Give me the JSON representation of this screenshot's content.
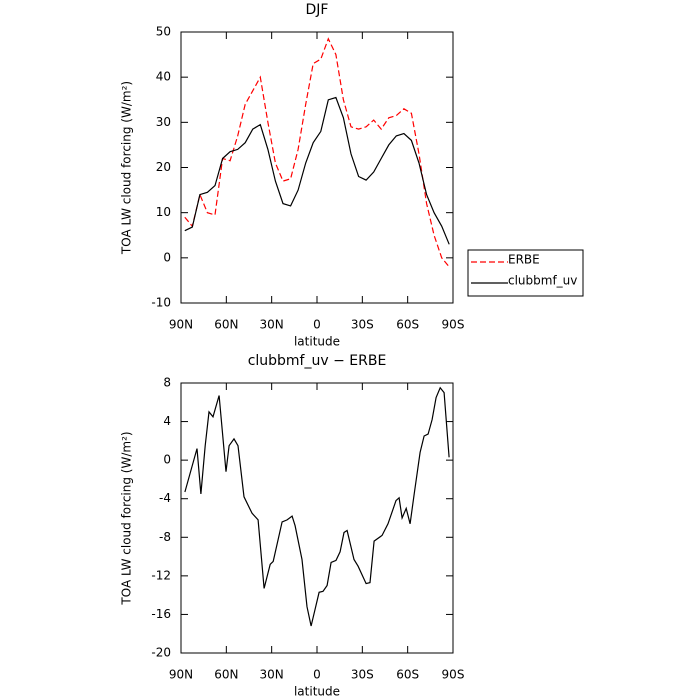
{
  "chart_data": [
    {
      "type": "line",
      "title": "DJF",
      "xlabel": "latitude",
      "ylabel": "TOA LW cloud forcing (W/m²)",
      "xlim": [
        90,
        -90
      ],
      "xticks": [
        {
          "value": 90,
          "label": "90N"
        },
        {
          "value": 60,
          "label": "60N"
        },
        {
          "value": 30,
          "label": "30N"
        },
        0,
        {
          "value": -30,
          "label": "30S"
        },
        {
          "value": -60,
          "label": "60S"
        },
        {
          "value": -90,
          "label": "90S"
        }
      ],
      "ylim": [
        -10,
        50
      ],
      "yticks": [
        -10,
        0,
        10,
        20,
        30,
        40,
        50
      ],
      "x": [
        87.5,
        82.5,
        77.5,
        72.5,
        67.5,
        62.5,
        57.5,
        52.5,
        47.5,
        42.5,
        37.5,
        32.5,
        27.5,
        22.5,
        17.5,
        12.5,
        7.5,
        2.5,
        -2.5,
        -7.5,
        -12.5,
        -17.5,
        -22.5,
        -27.5,
        -32.5,
        -37.5,
        -42.5,
        -47.5,
        -52.5,
        -57.5,
        -62.5,
        -67.5,
        -72.5,
        -77.5,
        -82.5,
        -87.5
      ],
      "legend": "right",
      "series": [
        {
          "name": "ERBE",
          "color": "#ff0000",
          "dashed": true,
          "values": [
            9,
            7,
            14,
            10,
            9.5,
            22,
            21.5,
            27,
            34,
            37,
            40,
            30,
            21,
            17,
            17.5,
            24,
            34,
            43,
            44,
            48.5,
            45,
            35,
            29,
            28.5,
            29,
            30.5,
            28.5,
            31,
            31.5,
            33,
            32,
            23,
            12,
            5,
            0,
            -2
          ]
        },
        {
          "name": "clubbmf_uv",
          "color": "#000000",
          "dashed": false,
          "values": [
            6,
            6.8,
            14,
            14.5,
            16,
            22,
            23.5,
            24,
            25.5,
            28.5,
            29.5,
            24,
            17,
            12,
            11.5,
            15,
            21,
            25.5,
            28,
            35,
            35.5,
            31,
            23,
            18,
            17.2,
            19,
            22,
            25,
            27,
            27.5,
            26,
            21,
            14,
            10,
            7,
            3
          ]
        }
      ]
    },
    {
      "type": "line",
      "title": "clubbmf_uv − ERBE",
      "xlabel": "latitude",
      "ylabel": "TOA LW cloud forcing (W/m²)",
      "xlim": [
        90,
        -90
      ],
      "xticks": [
        {
          "value": 90,
          "label": "90N"
        },
        {
          "value": 60,
          "label": "60N"
        },
        {
          "value": 30,
          "label": "30N"
        },
        0,
        {
          "value": -30,
          "label": "30S"
        },
        {
          "value": -60,
          "label": "60S"
        },
        {
          "value": -90,
          "label": "90S"
        }
      ],
      "ylim": [
        -20,
        8
      ],
      "yticks": [
        -20,
        -16,
        -12,
        -8,
        -4,
        0,
        4,
        8
      ],
      "x": [
        87.4,
        79.4,
        76.8,
        74,
        71.5,
        68.8,
        64.8,
        60.2,
        58.2,
        54.9,
        52.3,
        48.3,
        43,
        39,
        35,
        31,
        29,
        23.1,
        19.8,
        16.5,
        14.5,
        9.9,
        6.6,
        3.9,
        1.3,
        -1.4,
        -4,
        -6.7,
        -9.3,
        -12.6,
        -15.3,
        -17.9,
        -19.9,
        -24.5,
        -27.2,
        -32.5,
        -35.1,
        -37.8,
        -43.1,
        -47,
        -52.3,
        -54.3,
        -56.3,
        -59,
        -61.6,
        -64.3,
        -68.2,
        -70.9,
        -73.5,
        -76.2,
        -78.8,
        -81.5,
        -84.1,
        -87.4
      ],
      "series": [
        {
          "color": "#000000",
          "dashed": false,
          "values": [
            -3.3,
            1.2,
            -3.5,
            1.5,
            5,
            4.5,
            6.7,
            -1.2,
            1.5,
            2.2,
            1.5,
            -3.8,
            -5.5,
            -6.2,
            -13.3,
            -10.8,
            -10.5,
            -6.4,
            -6.2,
            -5.8,
            -6.8,
            -10.3,
            -15.2,
            -17.2,
            -15.5,
            -13.7,
            -13.6,
            -13,
            -10.6,
            -10.4,
            -9.5,
            -7.5,
            -7.3,
            -10.3,
            -11,
            -12.8,
            -12.7,
            -8.4,
            -7.8,
            -6.6,
            -4.2,
            -3.9,
            -6,
            -5,
            -6.6,
            -3.5,
            0.8,
            2.5,
            2.7,
            4.2,
            6.5,
            7.5,
            7,
            0.3
          ]
        }
      ]
    }
  ]
}
